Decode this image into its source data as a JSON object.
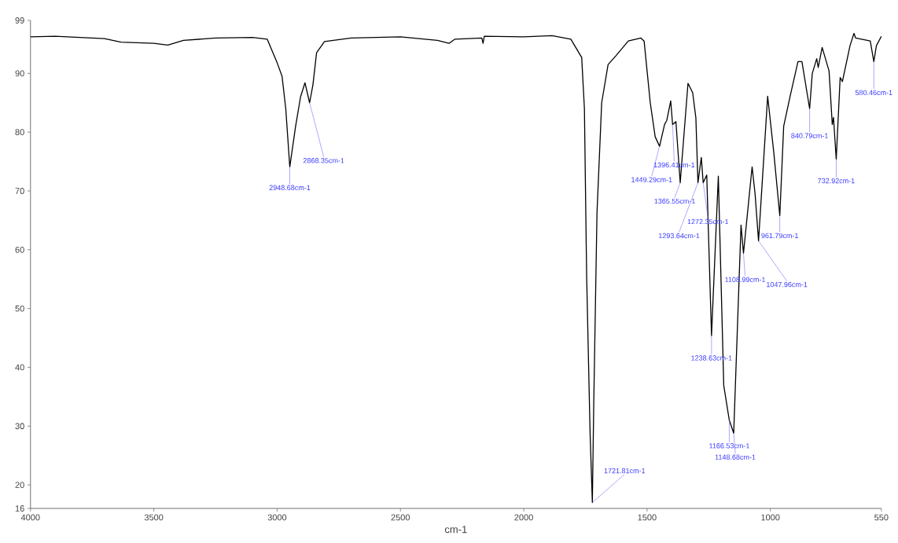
{
  "chart_data": {
    "type": "line",
    "xlabel": "cm-1",
    "xlim": [
      4000,
      550
    ],
    "ylim": [
      16,
      99
    ],
    "xticks": [
      4000,
      3500,
      3000,
      2500,
      2000,
      1500,
      1000,
      550
    ],
    "yticks": [
      16,
      20,
      30,
      40,
      50,
      60,
      70,
      80,
      90,
      99
    ],
    "grid": false,
    "marker": "none",
    "line_style": "solid",
    "series": [
      {
        "color": "#000000",
        "x": [
          4000,
          3900,
          3800,
          3700,
          3633,
          3500,
          3443,
          3380,
          3250,
          3100,
          3040,
          3000,
          2980,
          2965,
          2948.68,
          2925,
          2905,
          2887,
          2868.35,
          2855,
          2840,
          2808,
          2700,
          2500,
          2350,
          2303,
          2280,
          2170,
          2165,
          2160,
          2000,
          1885,
          1809,
          1765,
          1754,
          1745,
          1731,
          1721.81,
          1716,
          1703,
          1684,
          1658,
          1626,
          1576,
          1525,
          1512,
          1487,
          1467,
          1449.29,
          1429,
          1420,
          1404,
          1396.41,
          1383,
          1365.55,
          1334,
          1315,
          1302,
          1293.64,
          1280,
          1272.35,
          1258,
          1238.63,
          1211,
          1189,
          1166.53,
          1148.68,
          1119,
          1108.99,
          1074,
          1062,
          1047.96,
          1011,
          986,
          961.79,
          946,
          920,
          888,
          872,
          840.79,
          830,
          812,
          806,
          790,
          762,
          749,
          744,
          732.92,
          717,
          708,
          677,
          661,
          654,
          595,
          580.46,
          570,
          550
        ],
        "values": [
          96.2,
          96.3,
          96.1,
          95.9,
          95.3,
          95.1,
          94.8,
          95.6,
          96.0,
          96.1,
          95.8,
          91.8,
          89.5,
          84,
          74.1,
          81,
          86,
          88.4,
          85.0,
          88,
          93.5,
          95.4,
          96.0,
          96.2,
          95.6,
          95.1,
          95.8,
          96.0,
          95.1,
          96.3,
          96.2,
          96.4,
          95.8,
          92.7,
          84,
          55.6,
          28.8,
          17,
          34.2,
          66.3,
          85,
          91.5,
          93,
          95.5,
          96,
          95.5,
          85,
          79.2,
          77.6,
          81.3,
          82,
          85.3,
          81.3,
          81.8,
          71.4,
          88.3,
          86.7,
          82.4,
          71.4,
          75.7,
          71.4,
          72.7,
          45.4,
          72.5,
          36.9,
          31,
          28.8,
          64.2,
          59.4,
          74.1,
          69.5,
          61.5,
          86.1,
          76.5,
          65.8,
          81,
          86.1,
          92,
          92,
          84,
          90,
          92.5,
          91,
          94.4,
          90.4,
          81.3,
          82.5,
          75.4,
          89.3,
          88.6,
          94.7,
          96.8,
          96,
          95.5,
          92,
          94.7,
          96.3
        ]
      }
    ],
    "annotations": [
      {
        "text": "2948.68cm-1",
        "x": 2948.68,
        "y": 74.1
      },
      {
        "text": "2868.35cm-1",
        "x": 2868.35,
        "y": 85.0
      },
      {
        "text": "1721.81cm-1",
        "x": 1721.81,
        "y": 17
      },
      {
        "text": "1449.29cm-1",
        "x": 1449.29,
        "y": 77.6
      },
      {
        "text": "1396.41cm-1",
        "x": 1396.41,
        "y": 81.3
      },
      {
        "text": "1365.55cm-1",
        "x": 1365.55,
        "y": 71.4
      },
      {
        "text": "1293.64cm-1",
        "x": 1293.64,
        "y": 71.4
      },
      {
        "text": "1272.35cm-1",
        "x": 1272.35,
        "y": 71.4
      },
      {
        "text": "1238.63cm-1",
        "x": 1238.63,
        "y": 45.4
      },
      {
        "text": "1166.53cm-1",
        "x": 1166.53,
        "y": 31
      },
      {
        "text": "1148.68cm-1",
        "x": 1148.68,
        "y": 28.8
      },
      {
        "text": "1108.99cm-1",
        "x": 1108.99,
        "y": 59.4
      },
      {
        "text": "1047.96cm-1",
        "x": 1047.96,
        "y": 61.5
      },
      {
        "text": "961.79cm-1",
        "x": 961.79,
        "y": 65.8
      },
      {
        "text": "840.79cm-1",
        "x": 840.79,
        "y": 84
      },
      {
        "text": "732.92cm-1",
        "x": 732.92,
        "y": 75.4
      },
      {
        "text": "580.46cm-1",
        "x": 580.46,
        "y": 92
      }
    ]
  }
}
